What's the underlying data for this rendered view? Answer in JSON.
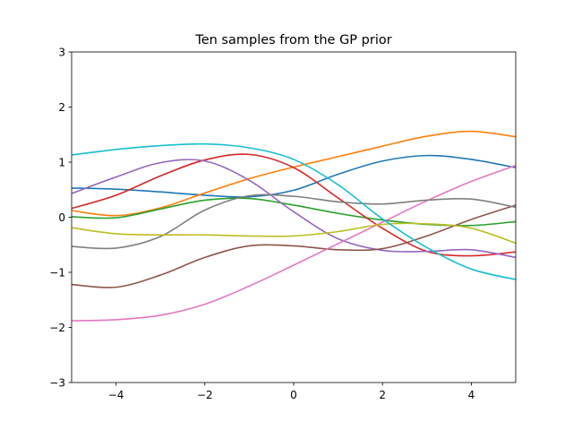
{
  "chart_data": {
    "type": "line",
    "title": "Ten samples from the GP prior",
    "xlabel": "",
    "ylabel": "",
    "xlim": [
      -5,
      5
    ],
    "ylim": [
      -3,
      3
    ],
    "xticks": [
      -4,
      -2,
      0,
      2,
      4
    ],
    "xtick_labels": [
      "−4",
      "−2",
      "0",
      "2",
      "4"
    ],
    "yticks": [
      -3,
      -2,
      -1,
      0,
      1,
      2,
      3
    ],
    "ytick_labels": [
      "−3",
      "−2",
      "−1",
      "0",
      "1",
      "2",
      "3"
    ],
    "grid": false,
    "x": [
      -5,
      -4,
      -3,
      -2,
      -1,
      0,
      1,
      2,
      3,
      4,
      5
    ],
    "series": [
      {
        "color": "#1f77b4",
        "values": [
          0.53,
          0.51,
          0.46,
          0.4,
          0.37,
          0.49,
          0.78,
          1.02,
          1.12,
          1.05,
          0.9
        ]
      },
      {
        "color": "#ff7f0e",
        "values": [
          0.12,
          0.03,
          0.17,
          0.44,
          0.7,
          0.91,
          1.1,
          1.29,
          1.47,
          1.56,
          1.46
        ]
      },
      {
        "color": "#2ca02c",
        "values": [
          0.01,
          -0.01,
          0.15,
          0.31,
          0.34,
          0.22,
          0.07,
          -0.05,
          -0.13,
          -0.15,
          -0.08
        ]
      },
      {
        "color": "#d62728",
        "values": [
          0.16,
          0.4,
          0.75,
          1.04,
          1.14,
          0.9,
          0.35,
          -0.2,
          -0.62,
          -0.7,
          -0.63
        ]
      },
      {
        "color": "#9467bd",
        "values": [
          0.43,
          0.73,
          0.99,
          1.02,
          0.67,
          0.1,
          -0.39,
          -0.6,
          -0.62,
          -0.59,
          -0.73
        ]
      },
      {
        "color": "#8c564b",
        "values": [
          -1.22,
          -1.27,
          -1.05,
          -0.73,
          -0.52,
          -0.52,
          -0.59,
          -0.57,
          -0.34,
          -0.04,
          0.22
        ]
      },
      {
        "color": "#e377c2",
        "values": [
          -1.88,
          -1.86,
          -1.78,
          -1.58,
          -1.25,
          -0.87,
          -0.48,
          -0.09,
          0.3,
          0.65,
          0.94
        ]
      },
      {
        "color": "#7f7f7f",
        "values": [
          -0.53,
          -0.56,
          -0.35,
          0.13,
          0.39,
          0.38,
          0.28,
          0.24,
          0.31,
          0.33,
          0.18
        ]
      },
      {
        "color": "#bcbd22",
        "values": [
          -0.19,
          -0.3,
          -0.32,
          -0.32,
          -0.34,
          -0.34,
          -0.26,
          -0.13,
          -0.12,
          -0.2,
          -0.47
        ]
      },
      {
        "color": "#17becf",
        "values": [
          1.13,
          1.23,
          1.3,
          1.33,
          1.26,
          1.05,
          0.59,
          -0.03,
          -0.55,
          -0.94,
          -1.13
        ]
      }
    ]
  }
}
